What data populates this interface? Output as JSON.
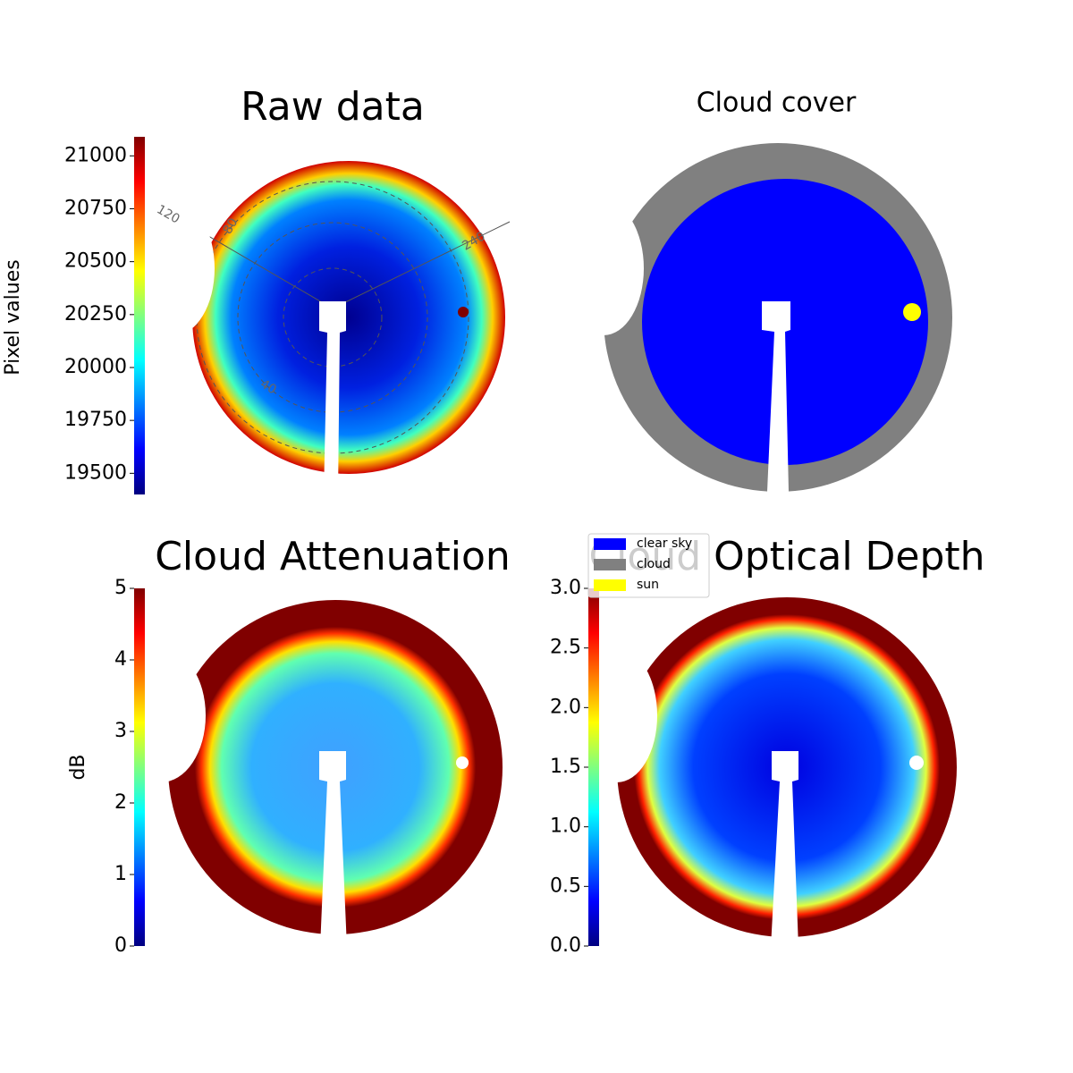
{
  "chart_data": [
    {
      "type": "image",
      "title": "Raw data",
      "ylabel": "Pixel values",
      "colormap": "jet",
      "ylim": [
        19400,
        21090
      ],
      "yticks": [
        19500,
        19750,
        20000,
        20250,
        20500,
        20750,
        21000
      ],
      "annotations": [
        "120",
        "80",
        "240",
        "40"
      ]
    },
    {
      "type": "image",
      "title": "Cloud cover",
      "legend": [
        {
          "name": "clear sky",
          "color": "#0000ff"
        },
        {
          "name": "cloud",
          "color": "#808080"
        },
        {
          "name": "sun",
          "color": "#ffff00"
        }
      ]
    },
    {
      "type": "image",
      "title": "Cloud Attenuation",
      "ylabel": "dB",
      "colormap": "jet",
      "ylim": [
        0,
        5
      ],
      "yticks": [
        0,
        1,
        2,
        3,
        4,
        5
      ]
    },
    {
      "type": "image",
      "title": "Cloud Optical Depth",
      "colormap": "jet",
      "ylim": [
        0,
        3.0
      ],
      "yticks": [
        {
          "value": 0,
          "label": "0.0"
        },
        {
          "value": 0.5,
          "label": "0.5"
        },
        {
          "value": 1.0,
          "label": "1.0"
        },
        {
          "value": 1.5,
          "label": "1.5"
        },
        {
          "value": 2.0,
          "label": "2.0"
        },
        {
          "value": 2.5,
          "label": "2.5"
        },
        {
          "value": 3.0,
          "label": "3.0"
        }
      ]
    }
  ]
}
